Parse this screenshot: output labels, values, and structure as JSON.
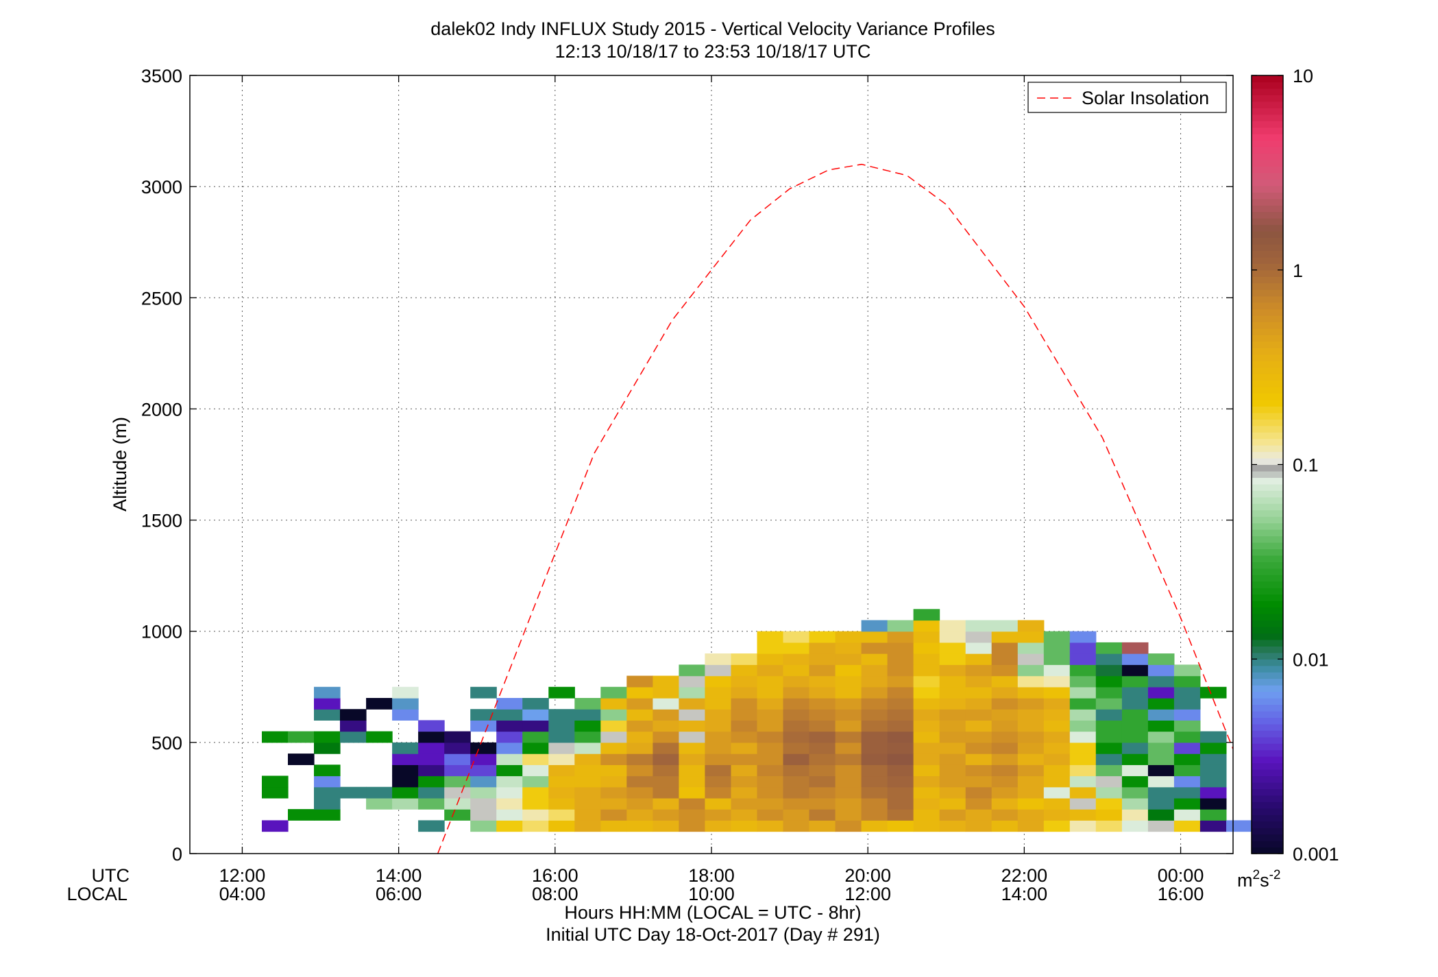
{
  "figure": {
    "title_line1": "dalek02 Indy INFLUX Study 2015 - Vertical Velocity Variance Profiles",
    "title_line2": "12:13 10/18/17 to 23:53 10/18/17  UTC",
    "ylabel": "Altitude (m)",
    "xlabel_line1": "Hours HH:MM  (LOCAL = UTC - 8hr)",
    "xlabel_line2": "Initial UTC Day 18-Oct-2017 (Day # 291)",
    "utc_row_label": "UTC",
    "local_row_label": "LOCAL",
    "colorbar_unit_base": "m",
    "colorbar_unit_sup1": "2",
    "colorbar_unit_mid": "s",
    "colorbar_unit_sup2": "-2"
  },
  "chart_data": {
    "type": "heatmap",
    "x_unit": "hours UTC",
    "xlim": [
      11.33,
      24.67
    ],
    "ylim": [
      0,
      3500
    ],
    "x_tick_values": [
      12,
      14,
      16,
      18,
      20,
      22,
      24
    ],
    "x_tick_labels_utc": [
      "12:00",
      "14:00",
      "16:00",
      "18:00",
      "20:00",
      "22:00",
      "00:00"
    ],
    "x_tick_labels_local": [
      "04:00",
      "06:00",
      "08:00",
      "10:00",
      "12:00",
      "14:00",
      "16:00"
    ],
    "y_tick_values": [
      0,
      500,
      1000,
      1500,
      2000,
      2500,
      3000,
      3500
    ],
    "y_tick_labels": [
      "0",
      "500",
      "1000",
      "1500",
      "2000",
      "2500",
      "3000",
      "3500"
    ],
    "grid": true,
    "colorscale": "log",
    "clim": [
      0.001,
      10
    ],
    "colorbar_tick_values": [
      0.001,
      0.01,
      0.1,
      1,
      10
    ],
    "colorbar_tick_labels": [
      "0.001",
      "0.01",
      "0.1",
      "1",
      "10"
    ],
    "legend": {
      "location": "top-right",
      "entries": [
        "Solar Insolation"
      ]
    },
    "solar_insolation_curve": {
      "color": "#ff0000",
      "style": "dashed",
      "x": [
        14.5,
        15.5,
        16.5,
        17.5,
        18.5,
        19.0,
        19.5,
        19.92,
        20.5,
        21.0,
        22.0,
        23.0,
        24.0,
        24.67
      ],
      "y": [
        0,
        900,
        1800,
        2400,
        2850,
        2990,
        3075,
        3100,
        3050,
        2920,
        2460,
        1870,
        1060,
        470
      ]
    },
    "variance_grid": {
      "x_start": 12.25,
      "dx": 0.3333,
      "y_start": 100,
      "dy": 50,
      "series_description": "rows by altitude; each row is [start_index, [values...]]",
      "rows": [
        [
          0,
          [
            0.003,
            null,
            null,
            null,
            null,
            null,
            0.01,
            null,
            0.05,
            0.2,
            0.15,
            0.25,
            0.4,
            0.3,
            0.3,
            0.35,
            0.6,
            0.35,
            0.3,
            0.35,
            0.5,
            0.4,
            0.6,
            0.3,
            0.25,
            0.3,
            0.35,
            0.4,
            0.3,
            0.4,
            0.2,
            0.12,
            0.15,
            0.08,
            0.1,
            0.2,
            0.002,
            0.006
          ]
        ],
        [
          0,
          [
            null,
            0.02,
            0.02,
            null,
            null,
            null,
            null,
            0.03,
            0.1,
            0.08,
            0.12,
            0.15,
            0.4,
            0.6,
            0.4,
            0.5,
            0.6,
            0.5,
            0.4,
            0.6,
            0.5,
            0.8,
            0.5,
            0.7,
            0.9,
            0.3,
            0.5,
            0.4,
            0.5,
            0.4,
            0.35,
            0.3,
            0.25,
            0.12,
            0.015,
            0.08,
            0.03
          ]
        ],
        [
          0,
          [
            null,
            null,
            0.01,
            null,
            0.05,
            0.06,
            0.04,
            0.07,
            0.1,
            0.12,
            0.2,
            0.3,
            0.4,
            0.4,
            0.5,
            0.35,
            0.7,
            0.3,
            0.5,
            0.5,
            0.6,
            0.6,
            0.5,
            0.7,
            1.0,
            0.35,
            0.3,
            0.6,
            0.35,
            0.25,
            0.3,
            0.1,
            0.2,
            0.06,
            0.01,
            0.02,
            0.001
          ]
        ],
        [
          0,
          [
            0.02,
            null,
            0.01,
            0.01,
            0.01,
            0.02,
            0.01,
            0.1,
            0.06,
            0.08,
            0.2,
            0.35,
            0.4,
            0.5,
            0.6,
            0.8,
            0.25,
            0.7,
            0.4,
            0.6,
            0.8,
            0.7,
            0.6,
            0.9,
            1.0,
            0.3,
            0.4,
            0.7,
            0.5,
            0.4,
            0.08,
            0.3,
            0.06,
            0.04,
            0.01,
            0.01,
            0.003
          ]
        ],
        [
          0,
          [
            0.02,
            null,
            0.006,
            null,
            null,
            0.001,
            0.02,
            0.04,
            0.008,
            0.07,
            0.05,
            0.3,
            0.3,
            0.35,
            0.8,
            0.8,
            0.3,
            0.8,
            0.5,
            0.6,
            0.8,
            0.9,
            0.6,
            1.0,
            1.1,
            0.4,
            0.5,
            0.5,
            0.6,
            0.4,
            0.3,
            0.07,
            0.1,
            0.02,
            0.08,
            0.006,
            0.01
          ]
        ],
        [
          0,
          [
            null,
            null,
            0.02,
            null,
            null,
            0.001,
            0.002,
            0.004,
            0.004,
            0.02,
            0.08,
            0.35,
            0.3,
            0.3,
            0.6,
            0.9,
            0.3,
            0.9,
            0.4,
            0.7,
            0.9,
            0.8,
            0.6,
            1.0,
            1.2,
            0.3,
            0.5,
            0.6,
            0.7,
            0.5,
            0.3,
            0.15,
            0.04,
            0.08,
            0.001,
            0.03,
            0.01
          ]
        ],
        [
          0,
          [
            null,
            0.001,
            null,
            null,
            null,
            0.003,
            0.003,
            0.005,
            0.003,
            0.07,
            0.15,
            0.12,
            0.35,
            0.6,
            0.8,
            1.1,
            0.4,
            0.6,
            0.6,
            0.6,
            1.2,
            0.9,
            0.8,
            1.3,
            1.5,
            0.4,
            0.5,
            0.35,
            0.5,
            0.35,
            0.4,
            0.2,
            0.01,
            0.02,
            0.04,
            0.02,
            0.01
          ]
        ],
        [
          0,
          [
            null,
            null,
            0.015,
            null,
            null,
            0.01,
            0.003,
            0.002,
            0.001,
            0.006,
            0.02,
            0.1,
            0.07,
            0.3,
            0.4,
            0.9,
            0.3,
            0.5,
            0.4,
            0.6,
            0.9,
            1.0,
            0.6,
            1.2,
            1.3,
            0.4,
            0.4,
            0.6,
            0.7,
            0.45,
            0.35,
            0.2,
            0.02,
            0.01,
            0.04,
            0.004,
            0.02
          ]
        ],
        [
          0,
          [
            0.02,
            0.03,
            0.02,
            0.01,
            0.02,
            null,
            0.001,
            0.0015,
            null,
            0.004,
            0.03,
            0.01,
            0.03,
            0.1,
            0.35,
            0.6,
            0.1,
            0.5,
            0.6,
            0.7,
            1.0,
            1.1,
            0.8,
            1.2,
            1.4,
            0.3,
            0.5,
            0.5,
            0.6,
            0.5,
            0.4,
            0.08,
            0.03,
            0.03,
            0.05,
            0.03,
            0.01
          ]
        ],
        [
          0,
          [
            null,
            null,
            null,
            0.002,
            null,
            null,
            0.004,
            null,
            0.006,
            0.002,
            0.002,
            0.01,
            0.02,
            0.18,
            0.5,
            0.4,
            0.35,
            0.4,
            0.7,
            0.5,
            0.9,
            0.8,
            0.5,
            0.9,
            1.0,
            0.35,
            0.45,
            0.35,
            0.5,
            0.4,
            0.3,
            0.05,
            0.03,
            0.03,
            0.02,
            0.04,
            null
          ]
        ],
        [
          0,
          [
            null,
            null,
            0.01,
            0.001,
            null,
            0.006,
            null,
            null,
            0.01,
            0.01,
            0.007,
            0.01,
            0.01,
            0.05,
            0.3,
            0.5,
            0.1,
            0.4,
            0.6,
            0.5,
            0.8,
            0.7,
            0.6,
            0.8,
            0.9,
            0.4,
            0.5,
            0.5,
            0.45,
            0.4,
            0.35,
            0.06,
            0.01,
            0.03,
            0.008,
            0.006,
            null
          ]
        ],
        [
          0,
          [
            null,
            null,
            0.003,
            null,
            0.001,
            0.008,
            null,
            null,
            null,
            0.006,
            0.01,
            null,
            0.04,
            0.3,
            0.5,
            0.08,
            0.4,
            0.3,
            0.6,
            0.4,
            0.7,
            0.6,
            0.5,
            0.7,
            0.8,
            0.3,
            0.35,
            0.4,
            0.6,
            0.5,
            0.4,
            0.03,
            0.04,
            0.01,
            0.02,
            0.01,
            null
          ]
        ],
        [
          0,
          [
            null,
            null,
            0.008,
            null,
            null,
            0.08,
            null,
            null,
            0.01,
            null,
            null,
            0.02,
            null,
            0.04,
            0.25,
            0.3,
            0.06,
            0.3,
            0.4,
            0.3,
            0.5,
            0.4,
            0.3,
            0.5,
            0.7,
            0.2,
            0.3,
            0.3,
            0.4,
            0.3,
            0.25,
            0.06,
            0.03,
            0.01,
            0.003,
            0.01,
            0.02
          ]
        ],
        [
          0,
          [
            null,
            null,
            null,
            null,
            null,
            null,
            null,
            null,
            null,
            null,
            null,
            null,
            null,
            null,
            0.6,
            0.3,
            0.1,
            0.25,
            0.35,
            0.3,
            0.4,
            0.35,
            0.3,
            0.4,
            0.5,
            0.18,
            0.3,
            0.4,
            0.3,
            0.13,
            0.12,
            0.04,
            0.02,
            0.03,
            0.01,
            0.03,
            null
          ]
        ],
        [
          0,
          [
            null,
            null,
            null,
            null,
            null,
            null,
            null,
            null,
            null,
            null,
            null,
            null,
            null,
            null,
            null,
            null,
            0.04,
            0.1,
            0.3,
            0.4,
            0.3,
            0.5,
            0.25,
            0.4,
            0.6,
            0.3,
            0.4,
            0.5,
            0.6,
            0.05,
            0.08,
            0.03,
            0.012,
            0.001,
            0.006,
            0.05,
            null
          ]
        ],
        [
          0,
          [
            null,
            null,
            null,
            null,
            null,
            null,
            null,
            null,
            null,
            null,
            null,
            null,
            null,
            null,
            null,
            null,
            null,
            0.12,
            0.15,
            0.3,
            0.35,
            0.4,
            0.4,
            0.3,
            0.6,
            0.3,
            0.2,
            0.3,
            0.7,
            0.1,
            0.04,
            0.004,
            0.01,
            0.006,
            0.04,
            null,
            null
          ]
        ],
        [
          0,
          [
            null,
            null,
            null,
            null,
            null,
            null,
            null,
            null,
            null,
            null,
            null,
            null,
            null,
            null,
            null,
            null,
            null,
            null,
            null,
            0.2,
            0.2,
            0.4,
            0.35,
            0.6,
            0.6,
            0.25,
            0.2,
            0.08,
            0.7,
            0.06,
            0.04,
            0.004,
            0.035,
            2.0,
            null,
            null,
            null
          ]
        ],
        [
          0,
          [
            null,
            null,
            null,
            null,
            null,
            null,
            null,
            null,
            null,
            null,
            null,
            null,
            null,
            null,
            null,
            null,
            null,
            null,
            null,
            0.2,
            0.15,
            0.2,
            0.3,
            0.3,
            0.5,
            0.3,
            0.12,
            0.1,
            0.3,
            0.3,
            0.04,
            0.006,
            null,
            null,
            null,
            null,
            null
          ]
        ],
        [
          0,
          [
            null,
            null,
            null,
            null,
            null,
            null,
            null,
            null,
            null,
            null,
            null,
            null,
            null,
            null,
            null,
            null,
            null,
            null,
            null,
            null,
            null,
            null,
            null,
            0.008,
            0.05,
            0.25,
            0.12,
            0.07,
            0.07,
            0.35,
            null,
            null,
            null,
            null,
            null,
            null,
            null
          ]
        ],
        [
          0,
          [
            null,
            null,
            null,
            null,
            null,
            null,
            null,
            null,
            null,
            null,
            null,
            null,
            null,
            null,
            null,
            null,
            null,
            null,
            null,
            null,
            null,
            null,
            null,
            null,
            null,
            0.03,
            null,
            null,
            null,
            null,
            null,
            null,
            null,
            null,
            null,
            null,
            null
          ]
        ]
      ]
    }
  }
}
